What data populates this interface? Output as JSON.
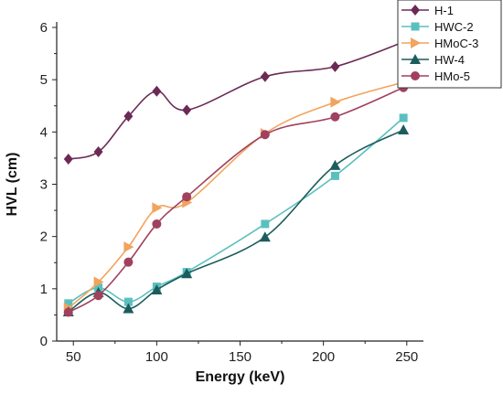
{
  "chart_data": {
    "type": "line",
    "xlabel": "Energy (keV)",
    "ylabel": "HVL (cm)",
    "xlim": [
      40,
      260
    ],
    "ylim": [
      0,
      6
    ],
    "xticks": [
      50,
      100,
      150,
      200,
      250
    ],
    "yticks": [
      0,
      1,
      2,
      3,
      4,
      5,
      6
    ],
    "grid": false,
    "legend_position": "top-right",
    "x": [
      47,
      65,
      83,
      100,
      118,
      165,
      207,
      248
    ],
    "series": [
      {
        "name": "H-1",
        "marker": "diamond",
        "color": "#6b2a55",
        "values": [
          3.48,
          3.62,
          4.3,
          4.78,
          4.42,
          5.06,
          5.25,
          5.72
        ]
      },
      {
        "name": "HWC-2",
        "marker": "square",
        "color": "#5bbfbf",
        "values": [
          0.72,
          1.02,
          0.75,
          1.04,
          1.32,
          2.24,
          3.16,
          4.27
        ]
      },
      {
        "name": "HMoC-3",
        "marker": "triangle-right",
        "color": "#f2a35c",
        "values": [
          0.63,
          1.13,
          1.8,
          2.55,
          2.65,
          3.97,
          4.57,
          4.95
        ]
      },
      {
        "name": "HW-4",
        "marker": "triangle-up",
        "color": "#1d5c5c",
        "values": [
          0.56,
          0.93,
          0.62,
          0.98,
          1.29,
          1.99,
          3.36,
          4.04
        ]
      },
      {
        "name": "HMo-5",
        "marker": "circle",
        "color": "#a0415e",
        "values": [
          0.55,
          0.87,
          1.51,
          2.24,
          2.76,
          3.95,
          4.29,
          4.85
        ]
      }
    ]
  }
}
